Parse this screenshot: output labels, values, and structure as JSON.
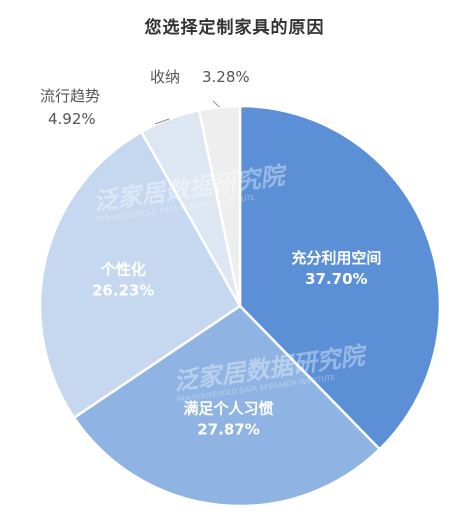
{
  "chart_data": {
    "type": "pie",
    "title": "您选择定制家具的原因",
    "unit": "%",
    "slices": [
      {
        "name": "充分利用空间",
        "value": 37.7,
        "label": "37.70%",
        "color": "#5b8fd6",
        "text_color": "#ffffff"
      },
      {
        "name": "满足个人习惯",
        "value": 27.87,
        "label": "27.87%",
        "color": "#8fb3e2",
        "text_color": "#ffffff"
      },
      {
        "name": "个性化",
        "value": 26.23,
        "label": "26.23%",
        "color": "#c6d8f0",
        "text_color": "#ffffff"
      },
      {
        "name": "流行趋势",
        "value": 4.92,
        "label": "4.92%",
        "color": "#dde6f3",
        "text_color": "#555555"
      },
      {
        "name": "收纳",
        "value": 3.28,
        "label": "3.28%",
        "color": "#eeeeee",
        "text_color": "#555555"
      }
    ],
    "start_angle_deg": 0,
    "direction": "clockwise",
    "legend": "none",
    "watermark": {
      "text": "泛家居数据研究院",
      "subtext": "PAN-HOUSEHOLD DATA RESEARCH INSTITUTE"
    }
  }
}
